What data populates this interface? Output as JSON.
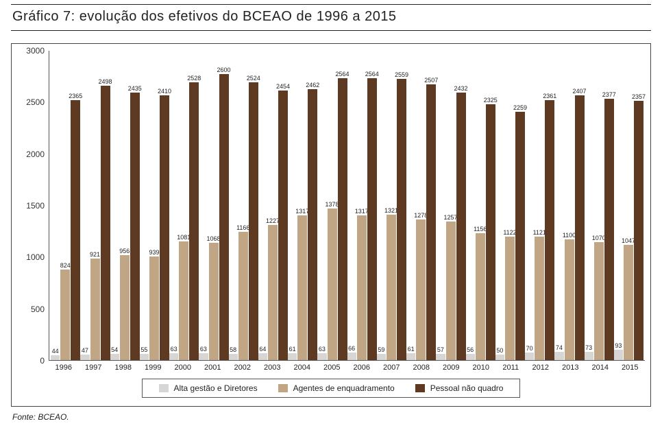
{
  "title": "Gráfico 7: evolução dos efetivos do BCEAO de 1996 a 2015",
  "source_label": "Fonte: BCEAO.",
  "chart": {
    "type": "bar",
    "ylim": [
      0,
      3000
    ],
    "ytick_step": 500,
    "background_color": "#ffffff",
    "axis_color": "#555555",
    "label_fontsize": 12,
    "barlabel_fontsize": 9,
    "series": [
      {
        "key": "s1",
        "label": "Alta gestão e Diretores",
        "color": "#d7d6d4"
      },
      {
        "key": "s2",
        "label": "Agentes de enquadramento",
        "color": "#c1a685"
      },
      {
        "key": "s3",
        "label": "Pessoal não quadro",
        "color": "#5f3a22"
      }
    ],
    "years": [
      "1996",
      "1997",
      "1998",
      "1999",
      "2000",
      "2001",
      "2002",
      "2003",
      "2004",
      "2005",
      "2006",
      "2007",
      "2008",
      "2009",
      "2010",
      "2011",
      "2012",
      "2013",
      "2014",
      "2015"
    ],
    "data": {
      "s1": [
        44,
        47,
        54,
        55,
        63,
        63,
        58,
        64,
        61,
        63,
        66,
        59,
        61,
        57,
        56,
        50,
        70,
        74,
        73,
        93
      ],
      "s2": [
        824,
        921,
        956,
        939,
        1081,
        1068,
        1166,
        1227,
        1317,
        1378,
        1317,
        1321,
        1278,
        1257,
        1156,
        1122,
        1121,
        1100,
        1070,
        1047
      ],
      "s3": [
        2365,
        2498,
        2435,
        2410,
        2528,
        2600,
        2524,
        2454,
        2462,
        2564,
        2564,
        2559,
        2507,
        2432,
        2325,
        2259,
        2361,
        2407,
        2377,
        2357
      ]
    }
  }
}
